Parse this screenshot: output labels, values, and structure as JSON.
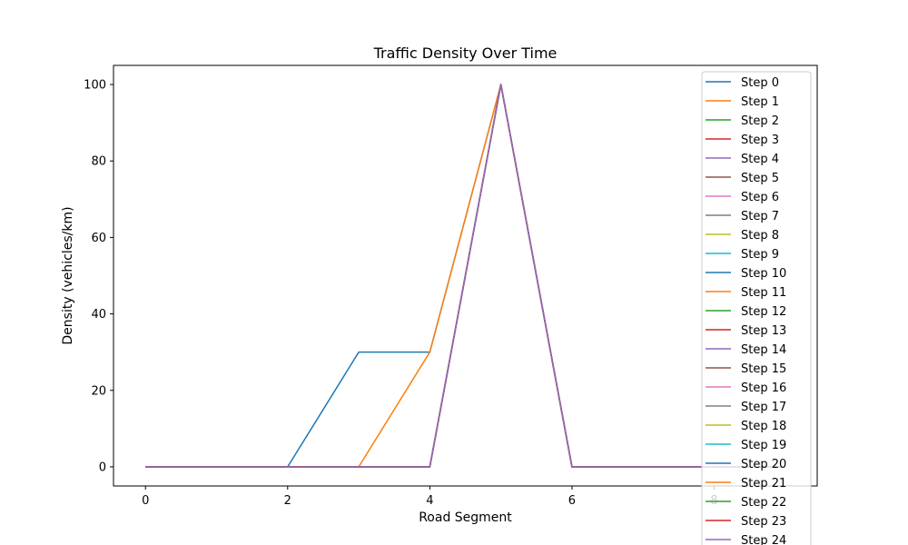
{
  "chart_data": {
    "type": "line",
    "title": "Traffic Density Over Time",
    "xlabel": "Road Segment",
    "ylabel": "Density (vehicles/km)",
    "xlim": [
      -0.45,
      9.45
    ],
    "ylim": [
      -5,
      105
    ],
    "xticks": [
      "0",
      "2",
      "4",
      "6",
      "8"
    ],
    "yticks": [
      "0",
      "20",
      "40",
      "60",
      "80",
      "100"
    ],
    "legend_position": "top-right",
    "x": [
      0,
      1,
      2,
      3,
      4,
      5,
      6,
      7,
      8,
      9
    ],
    "colors": [
      "#1f77b4",
      "#ff7f0e",
      "#2ca02c",
      "#d62728",
      "#9467bd",
      "#8c564b",
      "#e377c2",
      "#7f7f7f",
      "#bcbd22",
      "#17becf"
    ],
    "series": [
      {
        "name": "Step 0",
        "values": [
          0,
          0,
          0,
          30,
          30,
          100,
          0,
          0,
          0,
          0
        ]
      },
      {
        "name": "Step 1",
        "values": [
          0,
          0,
          0,
          0,
          30,
          100,
          0,
          0,
          0,
          0
        ]
      },
      {
        "name": "Step 2",
        "values": [
          0,
          0,
          0,
          0,
          0,
          100,
          0,
          0,
          0,
          0
        ]
      },
      {
        "name": "Step 3",
        "values": [
          0,
          0,
          0,
          0,
          0,
          100,
          0,
          0,
          0,
          0
        ]
      },
      {
        "name": "Step 4",
        "values": [
          0,
          0,
          0,
          0,
          0,
          100,
          0,
          0,
          0,
          0
        ]
      },
      {
        "name": "Step 5",
        "values": [
          0,
          0,
          0,
          0,
          0,
          100,
          0,
          0,
          0,
          0
        ]
      },
      {
        "name": "Step 6",
        "values": [
          0,
          0,
          0,
          0,
          0,
          100,
          0,
          0,
          0,
          0
        ]
      },
      {
        "name": "Step 7",
        "values": [
          0,
          0,
          0,
          0,
          0,
          100,
          0,
          0,
          0,
          0
        ]
      },
      {
        "name": "Step 8",
        "values": [
          0,
          0,
          0,
          0,
          0,
          100,
          0,
          0,
          0,
          0
        ]
      },
      {
        "name": "Step 9",
        "values": [
          0,
          0,
          0,
          0,
          0,
          100,
          0,
          0,
          0,
          0
        ]
      },
      {
        "name": "Step 10",
        "values": [
          0,
          0,
          0,
          0,
          0,
          100,
          0,
          0,
          0,
          0
        ]
      },
      {
        "name": "Step 11",
        "values": [
          0,
          0,
          0,
          0,
          0,
          100,
          0,
          0,
          0,
          0
        ]
      },
      {
        "name": "Step 12",
        "values": [
          0,
          0,
          0,
          0,
          0,
          100,
          0,
          0,
          0,
          0
        ]
      },
      {
        "name": "Step 13",
        "values": [
          0,
          0,
          0,
          0,
          0,
          100,
          0,
          0,
          0,
          0
        ]
      },
      {
        "name": "Step 14",
        "values": [
          0,
          0,
          0,
          0,
          0,
          100,
          0,
          0,
          0,
          0
        ]
      },
      {
        "name": "Step 15",
        "values": [
          0,
          0,
          0,
          0,
          0,
          100,
          0,
          0,
          0,
          0
        ]
      },
      {
        "name": "Step 16",
        "values": [
          0,
          0,
          0,
          0,
          0,
          100,
          0,
          0,
          0,
          0
        ]
      },
      {
        "name": "Step 17",
        "values": [
          0,
          0,
          0,
          0,
          0,
          100,
          0,
          0,
          0,
          0
        ]
      },
      {
        "name": "Step 18",
        "values": [
          0,
          0,
          0,
          0,
          0,
          100,
          0,
          0,
          0,
          0
        ]
      },
      {
        "name": "Step 19",
        "values": [
          0,
          0,
          0,
          0,
          0,
          100,
          0,
          0,
          0,
          0
        ]
      },
      {
        "name": "Step 20",
        "values": [
          0,
          0,
          0,
          0,
          0,
          100,
          0,
          0,
          0,
          0
        ]
      },
      {
        "name": "Step 21",
        "values": [
          0,
          0,
          0,
          0,
          0,
          100,
          0,
          0,
          0,
          0
        ]
      },
      {
        "name": "Step 22",
        "values": [
          0,
          0,
          0,
          0,
          0,
          100,
          0,
          0,
          0,
          0
        ]
      },
      {
        "name": "Step 23",
        "values": [
          0,
          0,
          0,
          0,
          0,
          100,
          0,
          0,
          0,
          0
        ]
      },
      {
        "name": "Step 24",
        "values": [
          0,
          0,
          0,
          0,
          0,
          100,
          0,
          0,
          0,
          0
        ]
      }
    ]
  }
}
